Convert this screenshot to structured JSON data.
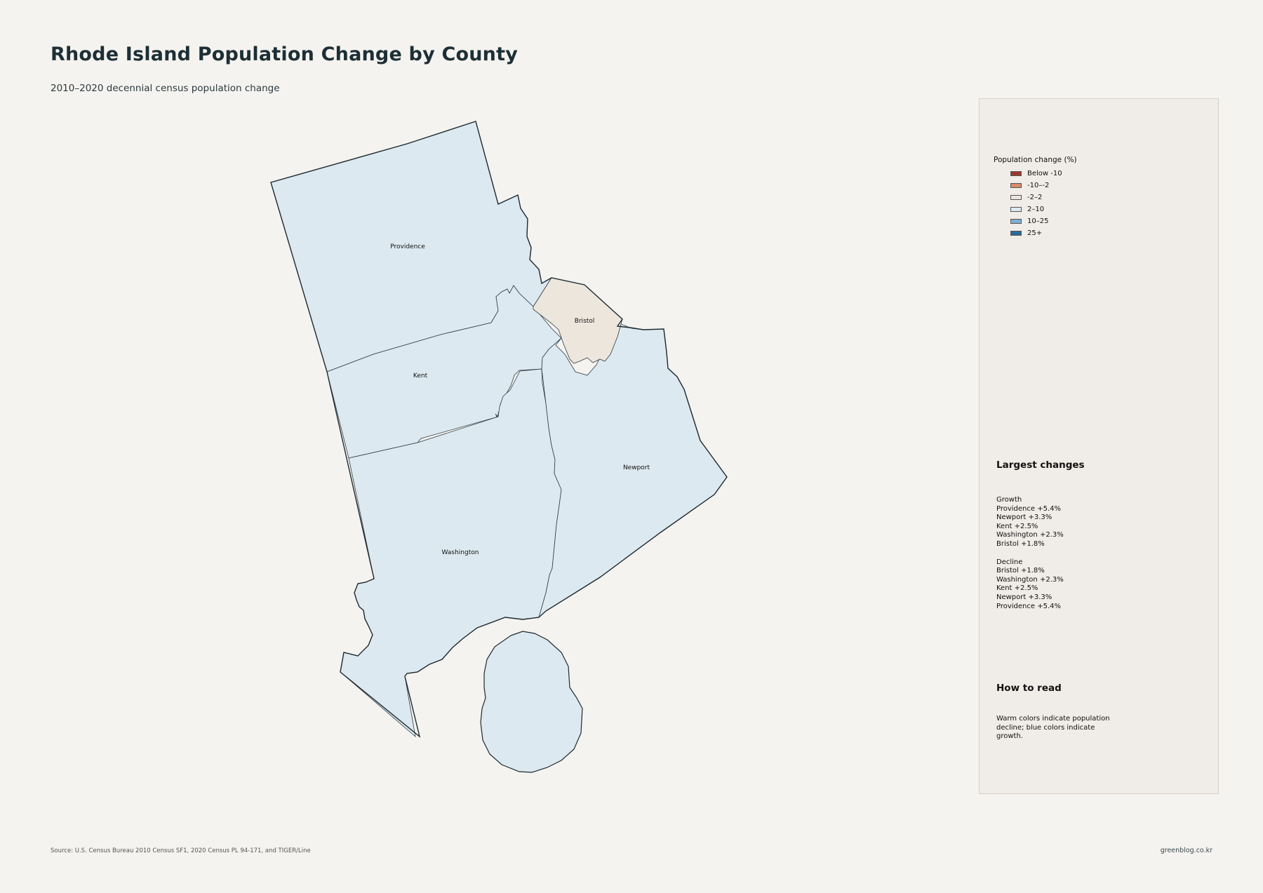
{
  "title": "Rhode Island Population Change by County",
  "subtitle": "2010–2020 decennial census population change",
  "counties": {
    "providence": {
      "name": "Providence",
      "color": "#dce9f0"
    },
    "kent": {
      "name": "Kent",
      "color": "#dce9f0"
    },
    "washington": {
      "name": "Washington",
      "color": "#dce9f0"
    },
    "newport": {
      "name": "Newport",
      "color": "#dce9f0"
    },
    "bristol": {
      "name": "Bristol",
      "color": "#ece6dc"
    }
  },
  "legend": {
    "title": "Population change (%)",
    "items": [
      {
        "label": "Below -10",
        "color": "#9b3a2e"
      },
      {
        "label": "-10–-2",
        "color": "#d98a6a"
      },
      {
        "label": "-2–2",
        "color": "#ece6dc"
      },
      {
        "label": "2–10",
        "color": "#dce9f0"
      },
      {
        "label": "10–25",
        "color": "#7fb0d3"
      },
      {
        "label": "25+",
        "color": "#2c6a9a"
      }
    ]
  },
  "largest_changes": {
    "heading": "Largest changes",
    "growth_label": "Growth",
    "growth": [
      "Providence  +5.4%",
      "Newport  +3.3%",
      "Kent  +2.5%",
      "Washington  +2.3%",
      "Bristol  +1.8%"
    ],
    "decline_label": "Decline",
    "decline": [
      "Bristol  +1.8%",
      "Washington  +2.3%",
      "Kent  +2.5%",
      "Newport  +3.3%",
      "Providence  +5.4%"
    ]
  },
  "how_to_read": {
    "heading": "How to read",
    "text": "Warm colors indicate population decline; blue colors indicate growth."
  },
  "source": "Source: U.S. Census Bureau 2010 Census SF1, 2020 Census PL 94-171, and TIGER/Line",
  "credit": "greenblog.co.kr"
}
